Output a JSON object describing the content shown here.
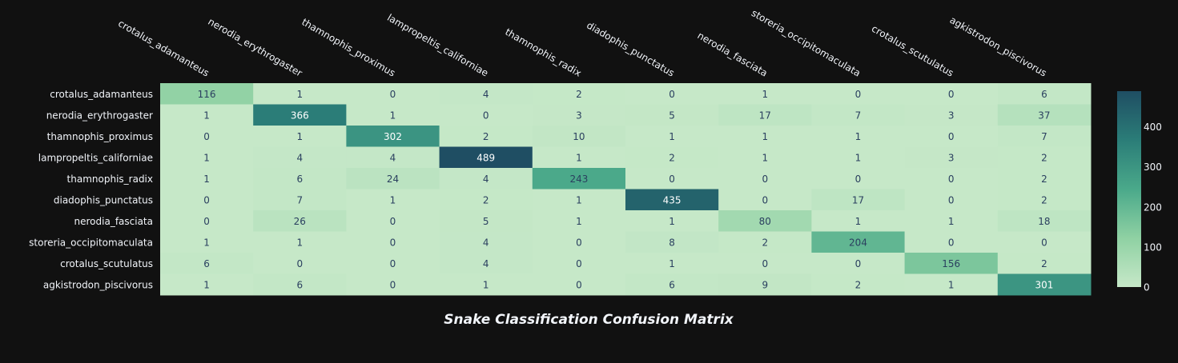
{
  "chart_data": {
    "type": "heatmap",
    "title": "Snake Classification Confusion Matrix",
    "x_categories": [
      "crotalus_adamanteus",
      "nerodia_erythrogaster",
      "thamnophis_proximus",
      "lampropeltis_californiae",
      "thamnophis_radix",
      "diadophis_punctatus",
      "nerodia_fasciata",
      "storeria_occipitomaculata",
      "crotalus_scutulatus",
      "agkistrodon_piscivorus"
    ],
    "y_categories": [
      "crotalus_adamanteus",
      "nerodia_erythrogaster",
      "thamnophis_proximus",
      "lampropeltis_californiae",
      "thamnophis_radix",
      "diadophis_punctatus",
      "nerodia_fasciata",
      "storeria_occipitomaculata",
      "crotalus_scutulatus",
      "agkistrodon_piscivorus"
    ],
    "values": [
      [
        116,
        1,
        0,
        4,
        2,
        0,
        1,
        0,
        0,
        6
      ],
      [
        1,
        366,
        1,
        0,
        3,
        5,
        17,
        7,
        3,
        37
      ],
      [
        0,
        1,
        302,
        2,
        10,
        1,
        1,
        1,
        0,
        7
      ],
      [
        1,
        4,
        4,
        489,
        1,
        2,
        1,
        1,
        3,
        2
      ],
      [
        1,
        6,
        24,
        4,
        243,
        0,
        0,
        0,
        0,
        2
      ],
      [
        0,
        7,
        1,
        2,
        1,
        435,
        0,
        17,
        0,
        2
      ],
      [
        0,
        26,
        0,
        5,
        1,
        1,
        80,
        1,
        1,
        18
      ],
      [
        1,
        1,
        0,
        4,
        0,
        8,
        2,
        204,
        0,
        0
      ],
      [
        6,
        0,
        0,
        4,
        0,
        1,
        0,
        0,
        156,
        2
      ],
      [
        1,
        6,
        0,
        1,
        0,
        6,
        9,
        2,
        1,
        301
      ]
    ],
    "zlim": [
      0,
      489
    ],
    "colorbar": {
      "ticks": [
        0,
        100,
        200,
        300,
        400
      ],
      "colors": [
        "#c6e8c8",
        "#8fd1a3",
        "#4aa98a",
        "#2b7d78",
        "#1f4e63"
      ]
    },
    "grid": false
  }
}
